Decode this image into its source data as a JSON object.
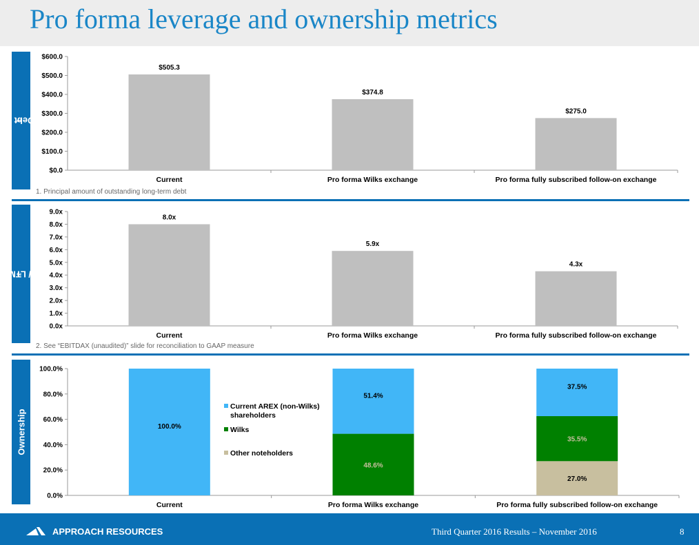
{
  "title": "Pro forma leverage and ownership metrics",
  "chart_data": [
    {
      "type": "bar",
      "side_label": "Total Debt ($MM)",
      "side_label_sup": "1",
      "categories": [
        "Current",
        "Pro forma Wilks exchange",
        "Pro forma fully subscribed follow-on exchange"
      ],
      "values": [
        505.3,
        374.8,
        275.0
      ],
      "value_labels": [
        "$505.3",
        "$374.8",
        "$275.0"
      ],
      "yticks": [
        "$0.0",
        "$100.0",
        "$200.0",
        "$300.0",
        "$400.0",
        "$500.0",
        "$600.0"
      ],
      "ylim": [
        0,
        600
      ],
      "color": "#bfbfbf",
      "footnote": "1. Principal amount of outstanding long-term debt"
    },
    {
      "type": "bar",
      "side_label": "Total Debt / LTM EBITDAX",
      "side_label_sup": "2",
      "categories": [
        "Current",
        "Pro forma Wilks exchange",
        "Pro forma fully subscribed follow-on exchange"
      ],
      "values": [
        8.0,
        5.9,
        4.3
      ],
      "value_labels": [
        "8.0x",
        "5.9x",
        "4.3x"
      ],
      "yticks": [
        "0.0x",
        "1.0x",
        "2.0x",
        "3.0x",
        "4.0x",
        "5.0x",
        "6.0x",
        "7.0x",
        "8.0x",
        "9.0x"
      ],
      "ylim": [
        0,
        9
      ],
      "color": "#bfbfbf",
      "footnote": "2. See “EBITDAX (unaudited)” slide for reconciliation to GAAP measure"
    },
    {
      "type": "bar",
      "stacked": true,
      "side_label": "Ownership",
      "categories": [
        "Current",
        "Pro forma Wilks exchange",
        "Pro forma fully subscribed follow-on exchange"
      ],
      "yticks": [
        "0.0%",
        "20.0%",
        "40.0%",
        "60.0%",
        "80.0%",
        "100.0%"
      ],
      "ylim": [
        0,
        100
      ],
      "series": [
        {
          "name": "Other noteholders",
          "values": [
            0,
            0,
            27.0
          ],
          "labels": [
            "",
            "",
            "27.0%"
          ],
          "color": "#c8bf9f"
        },
        {
          "name": "Wilks",
          "values": [
            0,
            48.6,
            35.5
          ],
          "labels": [
            "",
            "48.6%",
            "35.5%"
          ],
          "color": "#008000"
        },
        {
          "name": "Current AREX (non-Wilks) shareholders",
          "legend_lines": [
            "Current AREX (non-Wilks)",
            "shareholders"
          ],
          "values": [
            100.0,
            51.4,
            37.5
          ],
          "labels": [
            "100.0%",
            "51.4%",
            "37.5%"
          ],
          "color": "#41b6f7"
        }
      ]
    }
  ],
  "footer": {
    "company": "APPROACH RESOURCES",
    "text": "Third Quarter 2016 Results – November 2016",
    "page": "8"
  }
}
